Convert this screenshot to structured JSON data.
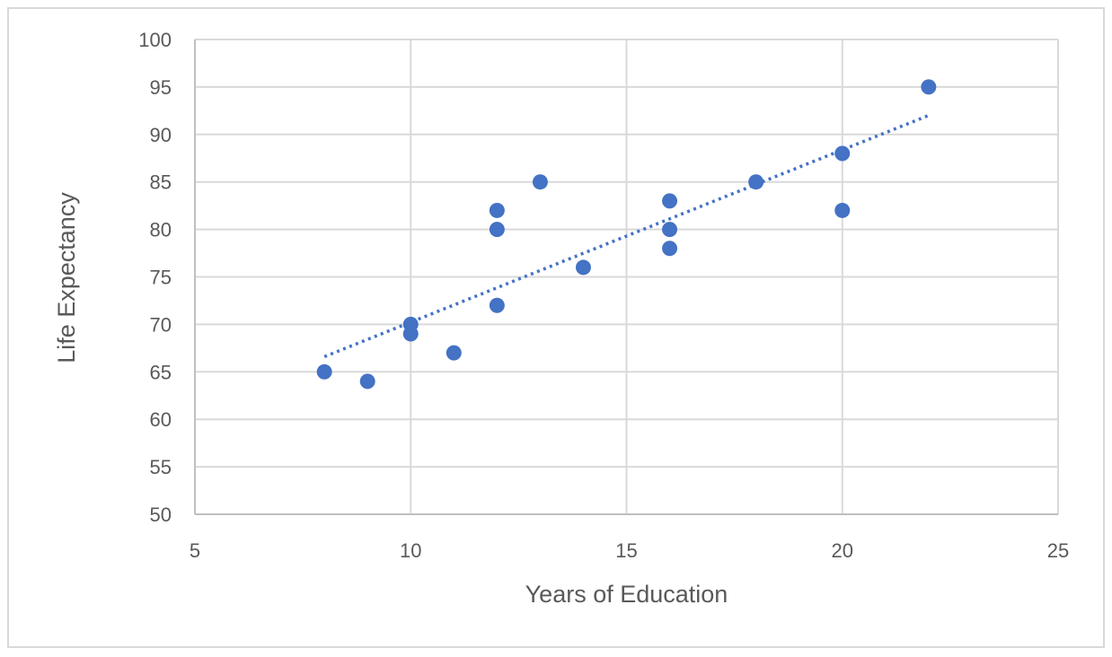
{
  "chart_data": {
    "type": "scatter",
    "title": "",
    "xlabel": "Years of Education",
    "ylabel": "Life Expectancy",
    "xlim": [
      5,
      25
    ],
    "ylim": [
      50,
      100
    ],
    "x_ticks": [
      5,
      10,
      15,
      20,
      25
    ],
    "y_ticks": [
      50,
      55,
      60,
      65,
      70,
      75,
      80,
      85,
      90,
      95,
      100
    ],
    "grid": true,
    "legend": "none",
    "series": [
      {
        "color": "#4472c4",
        "points": [
          {
            "x": 8,
            "y": 65
          },
          {
            "x": 9,
            "y": 64
          },
          {
            "x": 10,
            "y": 70
          },
          {
            "x": 10,
            "y": 69
          },
          {
            "x": 11,
            "y": 67
          },
          {
            "x": 12,
            "y": 82
          },
          {
            "x": 12,
            "y": 80
          },
          {
            "x": 12,
            "y": 72
          },
          {
            "x": 13,
            "y": 85
          },
          {
            "x": 14,
            "y": 76
          },
          {
            "x": 16,
            "y": 83
          },
          {
            "x": 16,
            "y": 80
          },
          {
            "x": 16,
            "y": 78
          },
          {
            "x": 18,
            "y": 85
          },
          {
            "x": 20,
            "y": 88
          },
          {
            "x": 20,
            "y": 82
          },
          {
            "x": 22,
            "y": 95
          }
        ]
      }
    ],
    "trendline": {
      "type": "linear",
      "style": "dotted",
      "color": "#4472c4",
      "x": [
        8,
        22
      ],
      "y": [
        66.6,
        92.0
      ]
    }
  }
}
